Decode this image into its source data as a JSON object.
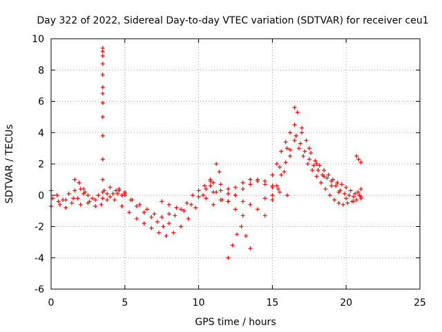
{
  "chart_data": {
    "type": "scatter",
    "title": "Day 322 of 2022, Sidereal Day-to-day VTEC variation (SDTVAR) for receiver ceu1",
    "xlabel": "GPS time / hours",
    "ylabel": "SDTVAR / TECUs",
    "xlim": [
      0,
      25
    ],
    "ylim": [
      -6,
      10
    ],
    "xticks": [
      0,
      5,
      10,
      15,
      20,
      25
    ],
    "yticks": [
      -6,
      -4,
      -2,
      0,
      2,
      4,
      6,
      8,
      10
    ],
    "grid": true,
    "marker": "+",
    "marker_color": "#ff0000",
    "tracks": [
      [
        [
          0.0,
          -0.7
        ],
        [
          0.5,
          -0.4
        ],
        [
          1.0,
          -0.3
        ],
        [
          1.5,
          -0.2
        ],
        [
          2.0,
          -0.6
        ],
        [
          2.5,
          -0.5
        ],
        [
          3.0,
          -0.3
        ],
        [
          3.5,
          -0.2
        ],
        [
          4.0,
          -0.1
        ],
        [
          4.5,
          0.1
        ],
        [
          5.0,
          0.2
        ]
      ],
      [
        [
          0.0,
          0.3
        ],
        [
          0.4,
          0.0
        ],
        [
          0.8,
          -0.3
        ],
        [
          1.2,
          0.1
        ],
        [
          1.6,
          0.3
        ],
        [
          2.0,
          0.4
        ],
        [
          2.3,
          0.2
        ]
      ],
      [
        [
          0.1,
          -0.2
        ],
        [
          0.6,
          -0.6
        ],
        [
          1.0,
          -0.8
        ],
        [
          1.4,
          -0.5
        ],
        [
          1.8,
          -0.2
        ],
        [
          2.2,
          0.1
        ],
        [
          2.6,
          -0.4
        ],
        [
          3.0,
          -0.7
        ],
        [
          3.4,
          -0.6
        ],
        [
          3.8,
          -0.3
        ],
        [
          4.2,
          0.1
        ],
        [
          4.6,
          0.3
        ]
      ],
      [
        [
          1.6,
          1.0
        ],
        [
          1.9,
          0.8
        ],
        [
          2.2,
          0.4
        ],
        [
          2.5,
          0.0
        ],
        [
          2.8,
          -0.2
        ],
        [
          3.2,
          0.0
        ],
        [
          3.6,
          0.3
        ],
        [
          4.0,
          0.5
        ],
        [
          4.4,
          0.3
        ],
        [
          4.8,
          0.0
        ]
      ],
      [
        [
          3.8,
          0.1
        ],
        [
          4.3,
          -0.3
        ],
        [
          4.8,
          -0.7
        ],
        [
          5.3,
          -1.1
        ],
        [
          5.8,
          -1.5
        ],
        [
          6.3,
          -1.8
        ],
        [
          6.8,
          -2.1
        ],
        [
          7.3,
          -2.4
        ],
        [
          7.8,
          -2.6
        ],
        [
          8.3,
          -2.4
        ],
        [
          8.8,
          -2.0
        ],
        [
          9.3,
          -1.5
        ],
        [
          9.8,
          -0.8
        ],
        [
          10.3,
          0.0
        ],
        [
          10.8,
          1.0
        ],
        [
          11.2,
          2.0
        ],
        [
          11.4,
          1.5
        ]
      ],
      [
        [
          4.6,
          0.4
        ],
        [
          5.0,
          0.1
        ],
        [
          5.4,
          -0.3
        ],
        [
          5.8,
          -0.7
        ],
        [
          6.3,
          -1.1
        ],
        [
          6.8,
          -1.4
        ],
        [
          7.2,
          -1.7
        ],
        [
          7.6,
          -2.0
        ],
        [
          8.0,
          -1.8
        ],
        [
          8.4,
          -1.3
        ],
        [
          8.8,
          -0.9
        ],
        [
          9.2,
          -0.5
        ],
        [
          9.6,
          0.0
        ],
        [
          10.0,
          0.3
        ],
        [
          10.4,
          0.6
        ],
        [
          10.8,
          0.9
        ]
      ],
      [
        [
          5.0,
          0.0
        ],
        [
          5.5,
          -0.3
        ],
        [
          6.0,
          -0.6
        ],
        [
          6.5,
          -0.9
        ],
        [
          7.0,
          -1.2
        ],
        [
          7.5,
          -1.4
        ],
        [
          8.0,
          -1.2
        ],
        [
          8.5,
          -0.8
        ]
      ],
      [
        [
          7.5,
          -0.4
        ],
        [
          8.0,
          -0.6
        ],
        [
          8.5,
          -0.8
        ],
        [
          9.0,
          -1.0
        ],
        [
          9.5,
          -0.6
        ],
        [
          10.0,
          -0.1
        ],
        [
          10.5,
          0.4
        ],
        [
          11.0,
          0.8
        ],
        [
          11.5,
          0.3
        ],
        [
          12.0,
          -0.4
        ],
        [
          12.5,
          -0.9
        ],
        [
          13.0,
          -1.3
        ]
      ],
      [
        [
          10.8,
          0.6
        ],
        [
          11.2,
          0.2
        ],
        [
          11.6,
          -0.3
        ],
        [
          12.0,
          -4.0
        ],
        [
          12.3,
          -3.2
        ],
        [
          12.6,
          -2.5
        ],
        [
          12.9,
          -2.0
        ],
        [
          13.2,
          -2.6
        ],
        [
          13.5,
          -3.4
        ]
      ],
      [
        [
          11.0,
          0.2
        ],
        [
          11.5,
          0.7
        ],
        [
          12.0,
          0.4
        ],
        [
          12.5,
          0.0
        ],
        [
          13.0,
          -0.4
        ],
        [
          13.5,
          -0.6
        ],
        [
          14.0,
          -0.9
        ],
        [
          14.5,
          -1.3
        ]
      ],
      [
        [
          10.5,
          -0.2
        ],
        [
          11.0,
          -0.6
        ],
        [
          11.5,
          -0.3
        ],
        [
          12.0,
          0.1
        ],
        [
          12.5,
          0.5
        ],
        [
          13.0,
          0.8
        ],
        [
          13.5,
          1.0
        ],
        [
          14.0,
          0.9
        ],
        [
          14.5,
          0.7
        ],
        [
          15.0,
          0.5
        ],
        [
          15.5,
          0.2
        ],
        [
          16.0,
          0.0
        ]
      ],
      [
        [
          12.0,
          -0.4
        ],
        [
          12.5,
          0.0
        ],
        [
          13.0,
          0.4
        ],
        [
          13.5,
          0.7
        ],
        [
          14.0,
          1.0
        ],
        [
          14.5,
          0.9
        ],
        [
          15.0,
          1.3
        ],
        [
          15.3,
          2.0
        ],
        [
          15.6,
          2.8
        ],
        [
          15.9,
          3.4
        ],
        [
          16.2,
          4.0
        ],
        [
          16.5,
          5.6
        ],
        [
          16.7,
          5.3
        ],
        [
          17.0,
          4.3
        ],
        [
          17.3,
          3.5
        ],
        [
          17.6,
          2.7
        ],
        [
          17.9,
          2.2
        ],
        [
          18.2,
          1.9
        ],
        [
          18.5,
          1.6
        ],
        [
          18.8,
          1.3
        ],
        [
          19.1,
          1.0
        ],
        [
          19.4,
          0.8
        ],
        [
          19.7,
          0.7
        ],
        [
          20.0,
          0.5
        ],
        [
          20.3,
          0.3
        ],
        [
          20.6,
          0.1
        ],
        [
          20.9,
          0.0
        ]
      ],
      [
        [
          14.5,
          -0.2
        ],
        [
          15.0,
          0.0
        ],
        [
          15.3,
          0.6
        ],
        [
          15.6,
          1.3
        ],
        [
          15.9,
          2.1
        ],
        [
          16.2,
          2.9
        ],
        [
          16.5,
          3.5
        ],
        [
          16.8,
          3.0
        ],
        [
          17.1,
          2.5
        ],
        [
          17.4,
          2.0
        ],
        [
          17.7,
          1.6
        ],
        [
          18.0,
          1.2
        ],
        [
          18.3,
          0.8
        ],
        [
          18.6,
          0.4
        ],
        [
          18.9,
          0.0
        ],
        [
          19.2,
          -0.3
        ],
        [
          19.5,
          -0.5
        ],
        [
          19.8,
          -0.6
        ],
        [
          20.1,
          -0.5
        ],
        [
          20.4,
          -0.4
        ],
        [
          20.7,
          -0.3
        ],
        [
          21.0,
          -0.1
        ]
      ],
      [
        [
          15.0,
          -0.3
        ],
        [
          15.4,
          0.4
        ],
        [
          15.8,
          1.5
        ],
        [
          16.2,
          2.5
        ],
        [
          16.6,
          3.8
        ],
        [
          16.9,
          3.3
        ],
        [
          17.2,
          2.8
        ],
        [
          17.5,
          2.3
        ],
        [
          17.8,
          1.9
        ],
        [
          18.1,
          1.6
        ],
        [
          18.4,
          1.3
        ],
        [
          18.7,
          1.1
        ],
        [
          19.0,
          0.9
        ],
        [
          19.3,
          0.6
        ],
        [
          19.6,
          0.3
        ],
        [
          19.9,
          0.1
        ],
        [
          20.2,
          0.0
        ],
        [
          20.5,
          -0.1
        ],
        [
          20.8,
          0.2
        ],
        [
          21.0,
          0.4
        ]
      ],
      [
        [
          15.0,
          0.6
        ],
        [
          15.5,
          1.8
        ],
        [
          16.0,
          3.0
        ],
        [
          16.5,
          4.5
        ],
        [
          17.0,
          4.0
        ],
        [
          17.5,
          3.0
        ],
        [
          18.0,
          2.0
        ],
        [
          18.5,
          1.2
        ],
        [
          19.0,
          0.6
        ],
        [
          19.5,
          0.2
        ],
        [
          20.0,
          -0.2
        ],
        [
          20.5,
          -0.4
        ],
        [
          21.0,
          -0.2
        ]
      ],
      [
        [
          20.7,
          2.5
        ],
        [
          20.85,
          2.3
        ],
        [
          21.0,
          2.1
        ]
      ],
      [
        [
          3.5,
          9.4
        ],
        [
          3.5,
          9.2
        ],
        [
          3.5,
          8.9
        ],
        [
          3.5,
          8.4
        ],
        [
          3.5,
          7.7
        ],
        [
          3.5,
          6.9
        ],
        [
          3.5,
          6.5
        ],
        [
          3.5,
          5.9
        ],
        [
          3.5,
          5.0
        ],
        [
          3.5,
          3.8
        ],
        [
          3.5,
          2.3
        ],
        [
          3.5,
          1.0
        ],
        [
          3.5,
          0.2
        ]
      ]
    ]
  }
}
